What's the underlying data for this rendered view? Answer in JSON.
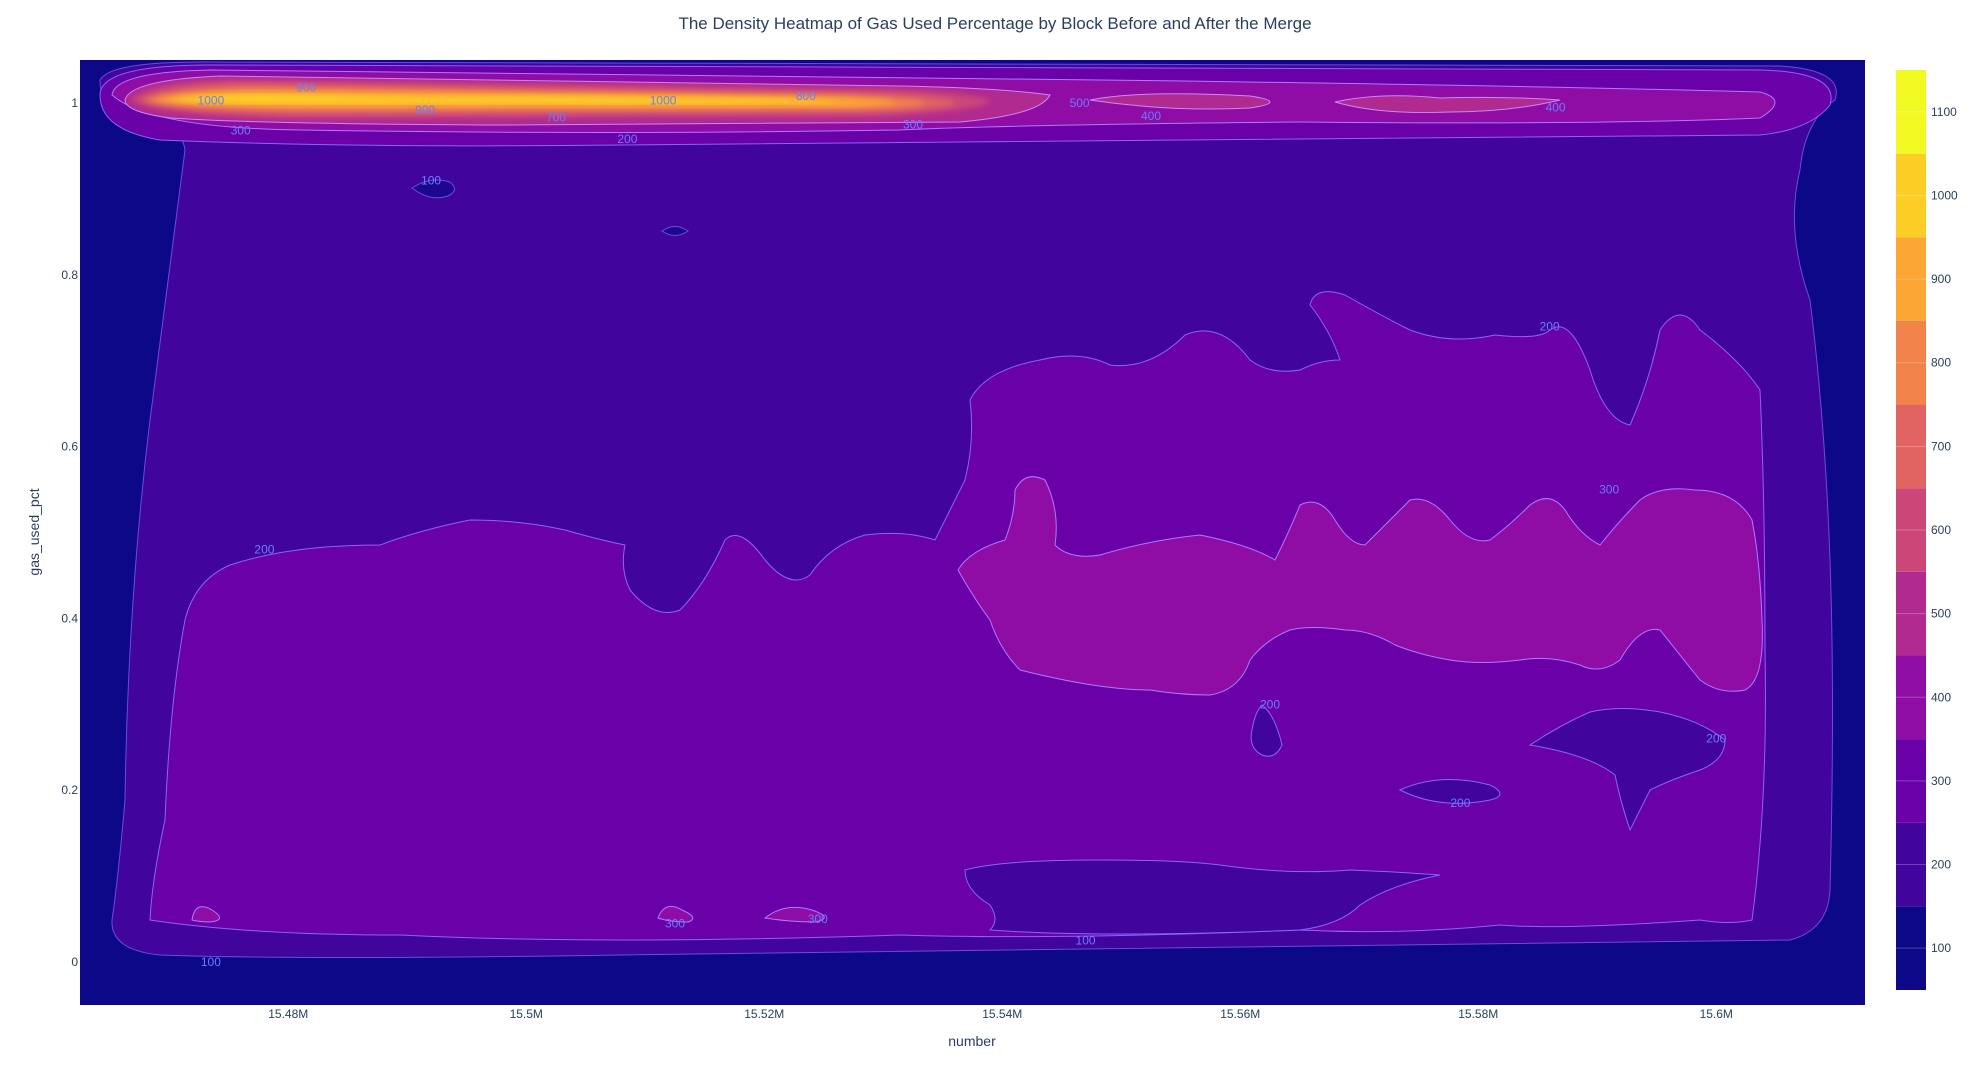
{
  "chart_data": {
    "type": "heatmap",
    "subtype": "density_contour",
    "title": "The Density Heatmap of Gas Used Percentage by Block Before and After the Merge",
    "xlabel": "number",
    "ylabel": "gas_used_pct",
    "xlim": [
      15.4625,
      15.6125
    ],
    "ylim": [
      -0.05,
      1.05
    ],
    "x_ticks": [
      {
        "value": 15.48,
        "label": "15.48M"
      },
      {
        "value": 15.5,
        "label": "15.5M"
      },
      {
        "value": 15.52,
        "label": "15.52M"
      },
      {
        "value": 15.54,
        "label": "15.54M"
      },
      {
        "value": 15.56,
        "label": "15.56M"
      },
      {
        "value": 15.58,
        "label": "15.58M"
      },
      {
        "value": 15.6,
        "label": "15.6M"
      }
    ],
    "y_ticks": [
      {
        "value": 0,
        "label": "0"
      },
      {
        "value": 0.2,
        "label": "0.2"
      },
      {
        "value": 0.4,
        "label": "0.4"
      },
      {
        "value": 0.6,
        "label": "0.6"
      },
      {
        "value": 0.8,
        "label": "0.8"
      },
      {
        "value": 1.0,
        "label": "1"
      }
    ],
    "colorbar": {
      "range": [
        50,
        1150
      ],
      "ticks": [
        "100",
        "200",
        "300",
        "400",
        "500",
        "600",
        "700",
        "800",
        "900",
        "1000",
        "1100"
      ],
      "colors": [
        "#0d0887",
        "#41049d",
        "#6a00a8",
        "#8f0da4",
        "#b12a90",
        "#cc4778",
        "#e16462",
        "#f2844b",
        "#fca636",
        "#fcce25",
        "#f0f921"
      ]
    },
    "contour_levels": [
      100,
      200,
      300,
      400,
      500,
      600,
      700,
      800,
      900,
      1000,
      1100
    ],
    "contour_labels": [
      {
        "text": "1000",
        "x": 15.4735,
        "y": 1.003
      },
      {
        "text": "900",
        "x": 15.4815,
        "y": 1.018
      },
      {
        "text": "900",
        "x": 15.4915,
        "y": 0.992
      },
      {
        "text": "700",
        "x": 15.5025,
        "y": 0.983
      },
      {
        "text": "1000",
        "x": 15.5115,
        "y": 1.003
      },
      {
        "text": "800",
        "x": 15.5235,
        "y": 1.008
      },
      {
        "text": "300",
        "x": 15.476,
        "y": 0.968
      },
      {
        "text": "300",
        "x": 15.5325,
        "y": 0.975
      },
      {
        "text": "200",
        "x": 15.5085,
        "y": 0.958
      },
      {
        "text": "500",
        "x": 15.5465,
        "y": 1.0
      },
      {
        "text": "400",
        "x": 15.5525,
        "y": 0.985
      },
      {
        "text": "400",
        "x": 15.5865,
        "y": 0.995
      },
      {
        "text": "100",
        "x": 15.492,
        "y": 0.91
      },
      {
        "text": "200",
        "x": 15.586,
        "y": 0.74
      },
      {
        "text": "200",
        "x": 15.478,
        "y": 0.48
      },
      {
        "text": "300",
        "x": 15.591,
        "y": 0.55
      },
      {
        "text": "200",
        "x": 15.5625,
        "y": 0.3
      },
      {
        "text": "200",
        "x": 15.6,
        "y": 0.26
      },
      {
        "text": "200",
        "x": 15.5785,
        "y": 0.185
      },
      {
        "text": "300",
        "x": 15.5125,
        "y": 0.045
      },
      {
        "text": "300",
        "x": 15.5245,
        "y": 0.05
      },
      {
        "text": "100",
        "x": 15.4735,
        "y": 0.0
      },
      {
        "text": "100",
        "x": 15.547,
        "y": 0.025
      }
    ]
  }
}
